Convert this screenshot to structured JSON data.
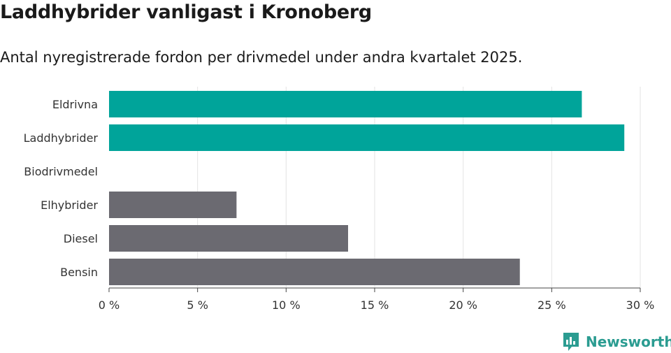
{
  "title": "Laddhybrider vanligast i Kronoberg",
  "subtitle": "Antal nyregistrerade fordon per drivmedel under andra kvartalet 2025.",
  "brand": {
    "name": "Newsworthy",
    "color": "#2b9c91"
  },
  "chart_data": {
    "type": "bar",
    "orientation": "horizontal",
    "categories": [
      "Eldrivna",
      "Laddhybrider",
      "Biodrivmedel",
      "Elhybrider",
      "Diesel",
      "Bensin"
    ],
    "values": [
      26.7,
      29.1,
      0,
      7.2,
      13.5,
      23.2
    ],
    "colors": [
      "#00a49a",
      "#00a49a",
      "#00a49a",
      "#6b6a71",
      "#6b6a71",
      "#6b6a71"
    ],
    "xlim": [
      0,
      30
    ],
    "xticks": [
      0,
      5,
      10,
      15,
      20,
      25,
      30
    ],
    "xtick_labels": [
      "0 %",
      "5 %",
      "10 %",
      "15 %",
      "20 %",
      "25 %",
      "30 %"
    ],
    "grid": true
  }
}
